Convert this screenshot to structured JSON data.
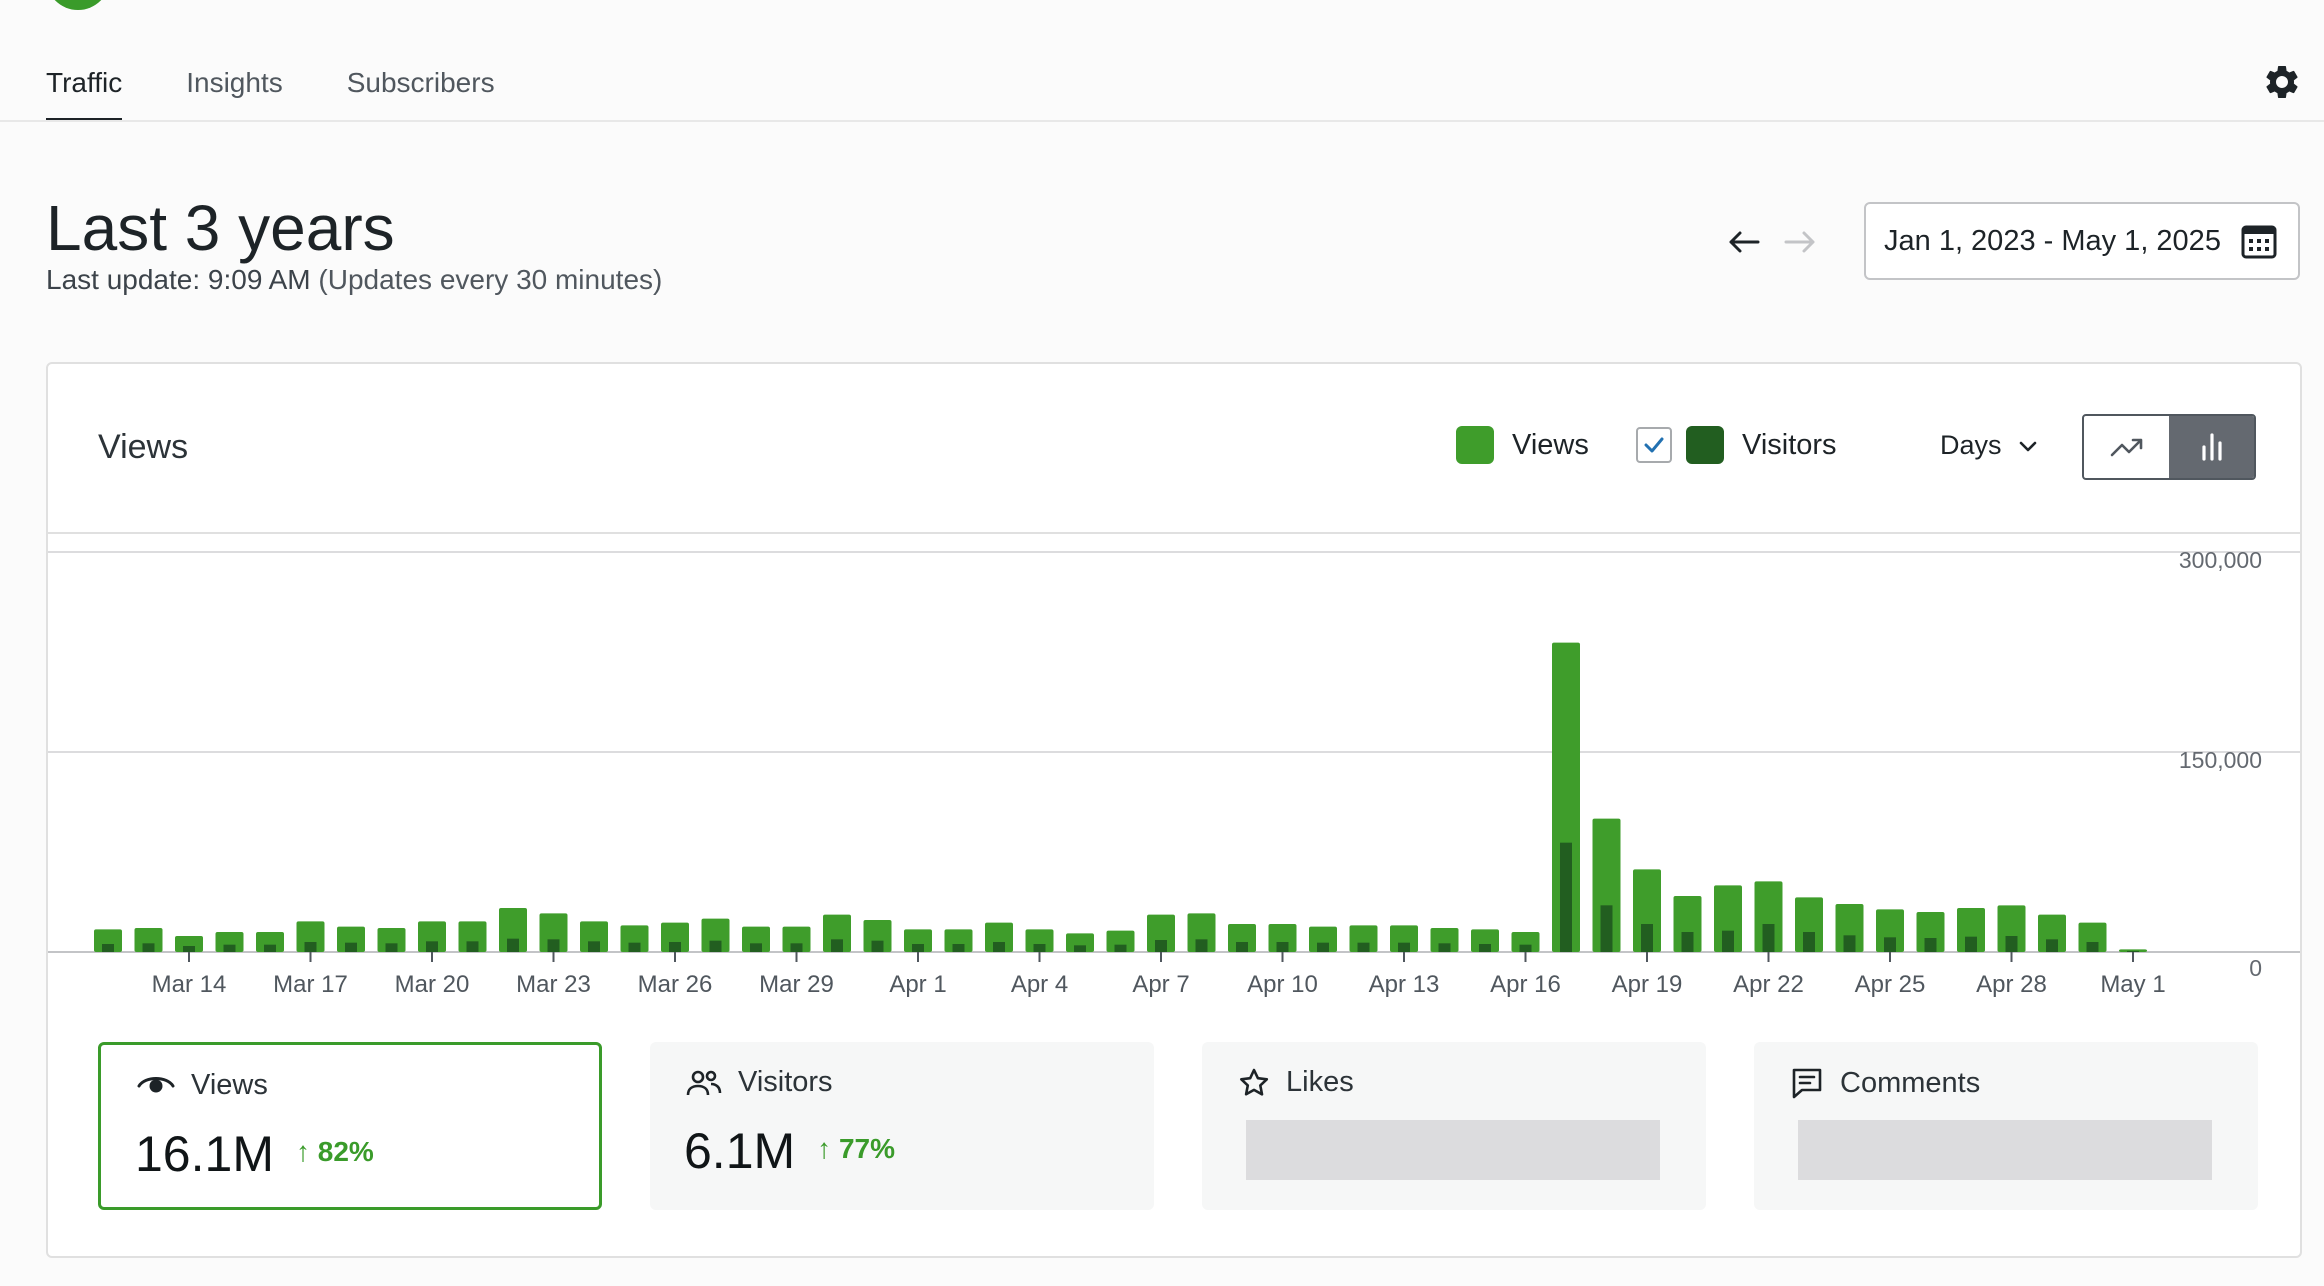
{
  "tabs": [
    {
      "label": "Traffic",
      "active": true
    },
    {
      "label": "Insights",
      "active": false
    },
    {
      "label": "Subscribers",
      "active": false
    }
  ],
  "header": {
    "title": "Last 3 years",
    "last_update": "Last update: 9:09 AM",
    "update_note": "(Updates every 30 minutes)",
    "date_range": "Jan 1, 2023 - May 1, 2025"
  },
  "chart_card": {
    "title": "Views",
    "legend": [
      {
        "label": "Views",
        "color": "#3f9d2b"
      },
      {
        "label": "Visitors",
        "color": "#225e20",
        "checked": true
      }
    ],
    "period": "Days",
    "chart_types": [
      "line-chart-icon",
      "bar-chart-icon"
    ],
    "selected_chart_type": "bar"
  },
  "chart_data": {
    "type": "bar",
    "title": "",
    "xlabel": "",
    "ylabel": "",
    "ylim": [
      0,
      300000
    ],
    "yticks": [
      "300,000",
      "150,000",
      "0"
    ],
    "ytick_values": [
      300000,
      150000,
      0
    ],
    "grid": true,
    "categories": [
      "Mar 12",
      "Mar 13",
      "Mar 14",
      "Mar 15",
      "Mar 16",
      "Mar 17",
      "Mar 18",
      "Mar 19",
      "Mar 20",
      "Mar 21",
      "Mar 22",
      "Mar 23",
      "Mar 24",
      "Mar 25",
      "Mar 26",
      "Mar 27",
      "Mar 28",
      "Mar 29",
      "Mar 30",
      "Mar 31",
      "Apr 1",
      "Apr 2",
      "Apr 3",
      "Apr 4",
      "Apr 5",
      "Apr 6",
      "Apr 7",
      "Apr 8",
      "Apr 9",
      "Apr 10",
      "Apr 11",
      "Apr 12",
      "Apr 13",
      "Apr 14",
      "Apr 15",
      "Apr 16",
      "Apr 17",
      "Apr 18",
      "Apr 19",
      "Apr 20",
      "Apr 21",
      "Apr 22",
      "Apr 23",
      "Apr 24",
      "Apr 25",
      "Apr 26",
      "Apr 27",
      "Apr 28",
      "Apr 29",
      "Apr 30",
      "May 1"
    ],
    "tick_labels": [
      "Mar 14",
      "Mar 17",
      "Mar 20",
      "Mar 23",
      "Mar 26",
      "Mar 29",
      "Apr 1",
      "Apr 4",
      "Apr 7",
      "Apr 10",
      "Apr 13",
      "Apr 16",
      "Apr 19",
      "Apr 22",
      "Apr 25",
      "Apr 28",
      "May 1"
    ],
    "series": [
      {
        "name": "Views",
        "color": "#3f9d2b",
        "values": [
          17000,
          18000,
          12000,
          15000,
          15000,
          23000,
          19000,
          18000,
          23000,
          23000,
          33000,
          29000,
          23000,
          20000,
          22000,
          25000,
          19000,
          19000,
          28000,
          24000,
          17000,
          17000,
          22000,
          17000,
          14000,
          16000,
          28000,
          29000,
          21000,
          21000,
          19000,
          20000,
          20000,
          18000,
          17000,
          15000,
          232000,
          100000,
          62000,
          42000,
          50000,
          53000,
          41000,
          36000,
          32000,
          30000,
          33000,
          35000,
          28000,
          22000,
          2000
        ]
      },
      {
        "name": "Visitors",
        "color": "#225e20",
        "values": [
          6000,
          6500,
          4500,
          5500,
          5500,
          7500,
          7000,
          6500,
          8000,
          8000,
          10000,
          9500,
          8000,
          7000,
          7500,
          8500,
          6500,
          6500,
          9500,
          8500,
          6000,
          6000,
          7500,
          6000,
          5000,
          5500,
          9000,
          9500,
          7500,
          7500,
          7000,
          7000,
          7000,
          6500,
          6000,
          5500,
          82000,
          35000,
          21000,
          15000,
          16000,
          21000,
          15000,
          12500,
          11000,
          10500,
          11500,
          12000,
          9500,
          7500,
          800
        ]
      }
    ]
  },
  "stats": [
    {
      "label": "Views",
      "icon": "eye-icon",
      "value": "16.1M",
      "change": "82%",
      "active": true
    },
    {
      "label": "Visitors",
      "icon": "people-icon",
      "value": "6.1M",
      "change": "77%",
      "active": false
    },
    {
      "label": "Likes",
      "icon": "star-icon",
      "value": "",
      "change": "",
      "active": false
    },
    {
      "label": "Comments",
      "icon": "comment-icon",
      "value": "",
      "change": "",
      "active": false
    }
  ]
}
